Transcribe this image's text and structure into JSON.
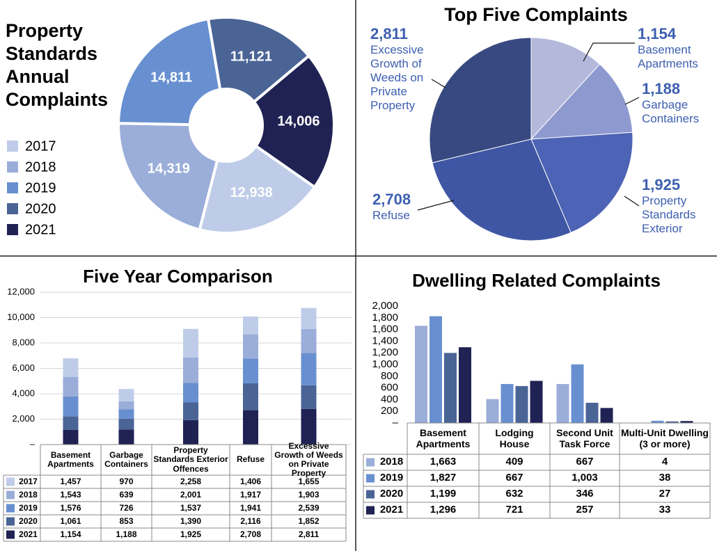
{
  "chart_data": [
    {
      "type": "pie",
      "donut": true,
      "legend": true,
      "title": "Property Standards Annual Complaints",
      "categories": [
        "2017",
        "2018",
        "2019",
        "2020",
        "2021"
      ],
      "values": [
        12938,
        14319,
        14811,
        11121,
        14006
      ],
      "value_labels": [
        "12,938",
        "14,319",
        "14,811",
        "11,121",
        "14,006"
      ],
      "colors": [
        "#bfcce9",
        "#9badd9",
        "#6890d0",
        "#4a6496",
        "#1f2253"
      ]
    },
    {
      "type": "pie",
      "title": "Top Five Complaints",
      "categories": [
        "Basement Apartments",
        "Garbage Containers",
        "Property Standards Exterior",
        "Refuse",
        "Excessive Growth of Weeds on Private Property"
      ],
      "values": [
        1154,
        1188,
        1925,
        2708,
        2811
      ],
      "value_labels": [
        "1,154",
        "1,188",
        "1,925",
        "2,708",
        "2,811"
      ],
      "colors": [
        "#b4b9dc",
        "#8e99cf",
        "#4d63b5",
        "#3f56a4",
        "#374980"
      ]
    },
    {
      "type": "bar",
      "stacked": true,
      "grid": true,
      "title": "Five Year Comparison",
      "categories": [
        "Basement Apartments",
        "Garbage Containers",
        "Property Standards Exterior Offences",
        "Refuse",
        "Excessive Growth of Weeds on Private Property"
      ],
      "series": [
        {
          "name": "2017",
          "color": "#bfcce9",
          "values": [
            1457,
            970,
            2258,
            1406,
            1655
          ],
          "value_labels": [
            "1,457",
            "970",
            "2,258",
            "1,406",
            "1,655"
          ]
        },
        {
          "name": "2018",
          "color": "#9badd9",
          "values": [
            1543,
            639,
            2001,
            1917,
            1903
          ],
          "value_labels": [
            "1,543",
            "639",
            "2,001",
            "1,917",
            "1,903"
          ]
        },
        {
          "name": "2019",
          "color": "#6890d0",
          "values": [
            1576,
            726,
            1537,
            1941,
            2539
          ],
          "value_labels": [
            "1,576",
            "726",
            "1,537",
            "1,941",
            "2,539"
          ]
        },
        {
          "name": "2020",
          "color": "#4a6496",
          "values": [
            1061,
            853,
            1390,
            2116,
            1852
          ],
          "value_labels": [
            "1,061",
            "853",
            "1,390",
            "2,116",
            "1,852"
          ]
        },
        {
          "name": "2021",
          "color": "#1f2253",
          "values": [
            1154,
            1188,
            1925,
            2708,
            2811
          ],
          "value_labels": [
            "1,154",
            "1,188",
            "1,925",
            "2,708",
            "2,811"
          ]
        }
      ],
      "ylim": [
        0,
        12000
      ],
      "yticks": [
        {
          "value": 0,
          "label": "–"
        },
        {
          "value": 2000,
          "label": "2,000"
        },
        {
          "value": 4000,
          "label": "4,000"
        },
        {
          "value": 6000,
          "label": "6,000"
        },
        {
          "value": 8000,
          "label": "8,000"
        },
        {
          "value": 10000,
          "label": "10,000"
        },
        {
          "value": 12000,
          "label": "12,000"
        }
      ]
    },
    {
      "type": "bar",
      "stacked": false,
      "grid": false,
      "title": "Dwelling Related Complaints",
      "categories": [
        "Basement Apartments",
        "Lodging House",
        "Second Unit Task Force",
        "Multi-Unit Dwelling (3 or more)"
      ],
      "series": [
        {
          "name": "2018",
          "color": "#9badd9",
          "values": [
            1663,
            409,
            667,
            4
          ],
          "value_labels": [
            "1,663",
            "409",
            "667",
            "4"
          ]
        },
        {
          "name": "2019",
          "color": "#6890d0",
          "values": [
            1827,
            667,
            1003,
            38
          ],
          "value_labels": [
            "1,827",
            "667",
            "1,003",
            "38"
          ]
        },
        {
          "name": "2020",
          "color": "#4a6496",
          "values": [
            1199,
            632,
            346,
            27
          ],
          "value_labels": [
            "1,199",
            "632",
            "346",
            "27"
          ]
        },
        {
          "name": "2021",
          "color": "#1f2253",
          "values": [
            1296,
            721,
            257,
            33
          ],
          "value_labels": [
            "1,296",
            "721",
            "257",
            "33"
          ]
        }
      ],
      "ylim": [
        0,
        2000
      ],
      "yticks": [
        {
          "value": 0,
          "label": "–"
        },
        200,
        400,
        600,
        800,
        {
          "value": 1000,
          "label": "1,000"
        },
        {
          "value": 1200,
          "label": "1,200"
        },
        {
          "value": 1400,
          "label": "1,400"
        },
        {
          "value": 1600,
          "label": "1,600"
        },
        {
          "value": 1800,
          "label": "1,800"
        },
        {
          "value": 2000,
          "label": "2,000"
        }
      ]
    }
  ]
}
